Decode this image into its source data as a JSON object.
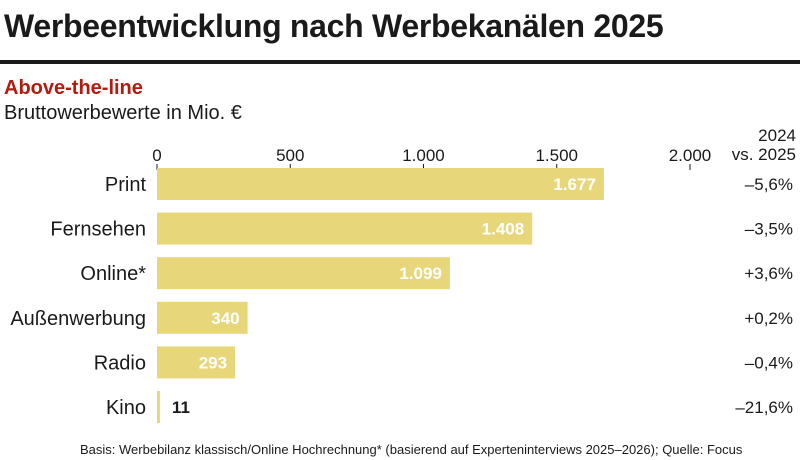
{
  "header": {
    "title": "Werbeentwicklung nach Werbekanälen 2025",
    "subtitle": "Above-the-line",
    "unit_label": "Bruttowerbewerte in Mio. €"
  },
  "compare_header": {
    "line1": "2024",
    "line2": "vs. 2025"
  },
  "colors": {
    "bar": "#e8d67a",
    "accent": "#b31b10",
    "text": "#1a1a1a",
    "value_on_bar": "#ffffff"
  },
  "chart_data": {
    "type": "bar",
    "orientation": "horizontal",
    "title": "Werbeentwicklung nach Werbekanälen 2025",
    "subtitle": "Above-the-line",
    "xlabel": "Bruttowerbewerte in Mio. €",
    "xlim": [
      0,
      2000
    ],
    "ticks": [
      0,
      500,
      1000,
      1500,
      2000
    ],
    "tick_labels": [
      "0",
      "500",
      "1.000",
      "1.500",
      "2.000"
    ],
    "categories": [
      "Print",
      "Fernsehen",
      "Online*",
      "Außenwerbung",
      "Radio",
      "Kino"
    ],
    "values": [
      1677,
      1408,
      1099,
      340,
      293,
      11
    ],
    "value_labels": [
      "1.677",
      "1.408",
      "1.099",
      "340",
      "293",
      "11"
    ],
    "change_header": "2024 vs. 2025",
    "changes": [
      "–5,6%",
      "–3,5%",
      "+3,6%",
      "+0,2%",
      "–0,4%",
      "–21,6%"
    ]
  },
  "footnote": "Basis: Werbebilanz klassisch/Online Hochrechnung* (basierend auf Experteninterviews 2025–2026); Quelle: Focus"
}
